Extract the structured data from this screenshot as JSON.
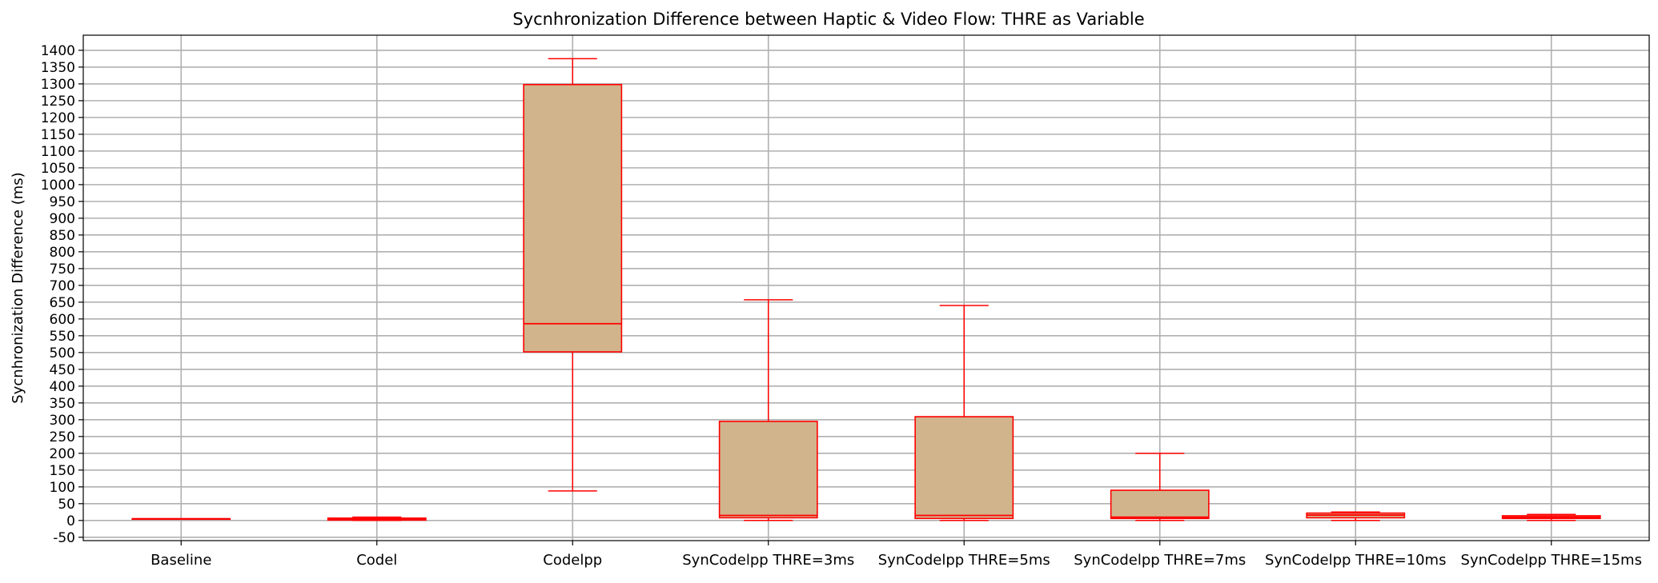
{
  "chart_data": {
    "type": "box",
    "title": "Sycnhronization Difference between Haptic & Video Flow: THRE as Variable",
    "xlabel": "",
    "ylabel": "Sycnhronization Difference (ms)",
    "ylim": [
      -60,
      1445
    ],
    "yticks": [
      -50,
      0,
      50,
      100,
      150,
      200,
      250,
      300,
      350,
      400,
      450,
      500,
      550,
      600,
      650,
      700,
      750,
      800,
      850,
      900,
      950,
      1000,
      1050,
      1100,
      1150,
      1200,
      1250,
      1300,
      1350,
      1400
    ],
    "grid": true,
    "colors": {
      "box_fill": "#d2b48c",
      "box_edge": "#ff0000",
      "grid": "#b0b0b0"
    },
    "categories": [
      "Baseline",
      "Codel",
      "Codelpp",
      "SynCodelpp THRE=3ms",
      "SynCodelpp THRE=5ms",
      "SynCodelpp THRE=7ms",
      "SynCodelpp THRE=10ms",
      "SynCodelpp THRE=15ms"
    ],
    "boxes": [
      {
        "whislo": 5,
        "q1": 5,
        "med": 5,
        "q3": 5,
        "whishi": 5
      },
      {
        "whislo": 0,
        "q1": 1,
        "med": 4,
        "q3": 7,
        "whishi": 10
      },
      {
        "whislo": 88,
        "q1": 502,
        "med": 586,
        "q3": 1298,
        "whishi": 1375
      },
      {
        "whislo": 0,
        "q1": 8,
        "med": 15,
        "q3": 295,
        "whishi": 657
      },
      {
        "whislo": 0,
        "q1": 6,
        "med": 15,
        "q3": 309,
        "whishi": 640
      },
      {
        "whislo": 0,
        "q1": 6,
        "med": 10,
        "q3": 90,
        "whishi": 200
      },
      {
        "whislo": 0,
        "q1": 8,
        "med": 16,
        "q3": 22,
        "whishi": 25
      },
      {
        "whislo": 0,
        "q1": 6,
        "med": 10,
        "q3": 14,
        "whishi": 18
      }
    ]
  }
}
